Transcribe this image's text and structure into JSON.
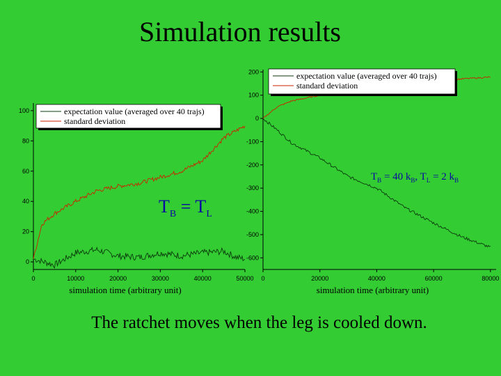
{
  "title": "Simulation results",
  "caption": "The ratchet moves when the leg is cooled down.",
  "colors": {
    "background": "#33cc33",
    "expectation": "#0b3a0b",
    "stddev": "#cc2200",
    "annotation": "#0a0aa0"
  },
  "chart_data": [
    {
      "type": "line",
      "xlabel": "simulation time (arbitrary unit)",
      "ylabel": "",
      "xlim": [
        0,
        50000
      ],
      "ylim": [
        -5,
        105
      ],
      "xticks": [
        "0",
        "10000",
        "20000",
        "30000",
        "40000",
        "50000"
      ],
      "yticks": [
        "0",
        "20",
        "40",
        "60",
        "80",
        "100"
      ],
      "annotation": "T_B = T_L",
      "legend": {
        "position": "top-left"
      },
      "series": [
        {
          "name": "expectation value (averaged over 40 trajs)",
          "x": [
            0,
            5000,
            10000,
            15000,
            20000,
            25000,
            30000,
            35000,
            40000,
            45000,
            48000,
            50000
          ],
          "values": [
            2,
            -2,
            6,
            8,
            4,
            3,
            6,
            4,
            6,
            7,
            3,
            2
          ]
        },
        {
          "name": "standard deviation",
          "x": [
            0,
            2000,
            5000,
            10000,
            15000,
            20000,
            25000,
            30000,
            35000,
            40000,
            45000,
            50000
          ],
          "values": [
            2,
            25,
            32,
            40,
            47,
            50,
            52,
            56,
            60,
            67,
            82,
            90
          ]
        }
      ]
    },
    {
      "type": "line",
      "xlabel": "simulation time (arbitrary unit)",
      "ylabel": "",
      "xlim": [
        0,
        82000
      ],
      "ylim": [
        -650,
        210
      ],
      "xticks": [
        "0",
        "20000",
        "40000",
        "60000",
        "80000"
      ],
      "yticks": [
        "200",
        "100",
        "0",
        "-100",
        "-200",
        "-300",
        "-400",
        "-500",
        "-600"
      ],
      "annotation": "T_B = 40 k_B, T_L = 2 k_B",
      "legend": {
        "position": "top-left"
      },
      "series": [
        {
          "name": "expectation value (averaged over 40 trajs)",
          "x": [
            0,
            5000,
            10000,
            20000,
            30000,
            40000,
            50000,
            60000,
            70000,
            80000
          ],
          "values": [
            0,
            -50,
            -105,
            -170,
            -250,
            -300,
            -385,
            -450,
            -510,
            -555
          ]
        },
        {
          "name": "standard deviation",
          "x": [
            0,
            5000,
            10000,
            20000,
            30000,
            40000,
            50000,
            60000,
            70000,
            80000
          ],
          "values": [
            0,
            50,
            75,
            100,
            120,
            135,
            150,
            160,
            170,
            178
          ]
        }
      ]
    }
  ],
  "annotations": {
    "left_T": "T",
    "left_B": "B",
    "left_eq": " = T",
    "left_L": "L",
    "right_text": [
      {
        "t": "T",
        "sub": "B"
      },
      {
        "t": " = 40 k",
        "sub": "B"
      },
      {
        "t": ", T",
        "sub": "L"
      },
      {
        "t": " = 2 k",
        "sub": "B"
      }
    ]
  }
}
